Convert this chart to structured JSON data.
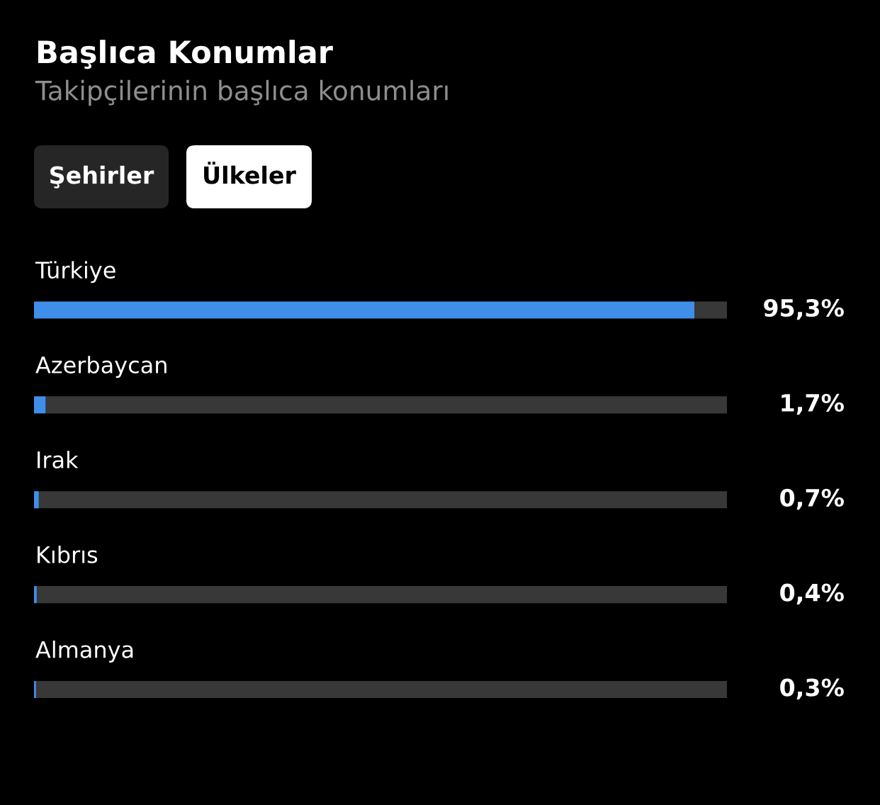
{
  "chart_data": {
    "type": "bar",
    "orientation": "horizontal",
    "stacked": true,
    "title": "Başlıca Konumlar",
    "subtitle": "Takipçilerinin başlıca konumları",
    "annotations": [
      "Şehirler",
      "Ülkeler"
    ],
    "categories": [
      "Türkiye",
      "Azerbaycan",
      "Irak",
      "Kıbrıs",
      "Almanya"
    ],
    "series": [
      {
        "color": "#3f8fea",
        "values": [
          95.3,
          1.7,
          0.7,
          0.4,
          0.3
        ],
        "value_labels": [
          "95,3%",
          "1,7%",
          "0,7%",
          "0,4%",
          "0,3%"
        ]
      },
      {
        "color": "#383838",
        "values": [
          4.7,
          98.3,
          99.3,
          99.6,
          99.7
        ]
      }
    ],
    "xlim": [
      0,
      100
    ]
  }
}
